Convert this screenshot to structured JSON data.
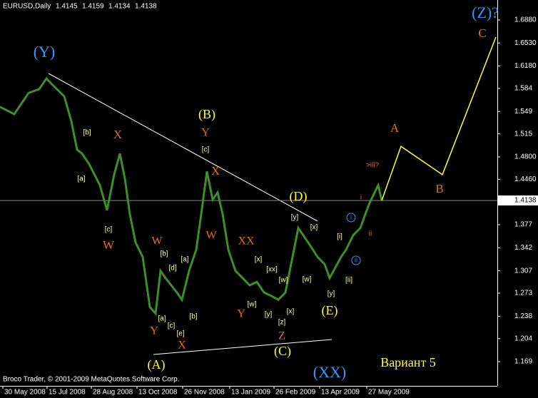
{
  "chart_data": {
    "type": "line",
    "symbol": "EURUSD,Daily",
    "ohlc": [
      1.4145,
      1.4159,
      1.4134,
      1.4138
    ],
    "x": [
      0,
      10,
      20,
      27.5,
      32.5,
      37.5,
      45,
      50,
      54,
      57.5,
      62.5,
      70,
      75,
      80,
      84,
      87.5,
      91,
      95,
      100,
      105,
      109,
      112.5,
      116,
      120,
      124,
      127.5,
      132.5,
      137.5,
      141,
      145,
      149,
      152.5,
      156,
      160,
      165,
      170,
      175,
      180,
      185,
      190,
      195,
      200,
      205,
      209,
      212.5,
      217.5,
      222.5,
      227.5,
      231,
      235,
      239,
      242.5,
      247.5,
      252.5,
      256,
      259,
      262.5,
      265,
      267.5
    ],
    "values": [
      1.556,
      1.545,
      1.577,
      1.583,
      1.599,
      1.588,
      1.572,
      1.534,
      1.491,
      1.485,
      1.469,
      1.437,
      1.399,
      1.453,
      1.485,
      1.447,
      1.393,
      1.35,
      1.328,
      1.252,
      1.242,
      1.307,
      1.296,
      1.285,
      1.274,
      1.263,
      1.307,
      1.339,
      1.393,
      1.458,
      1.415,
      1.426,
      1.393,
      1.339,
      1.307,
      1.296,
      1.285,
      1.29,
      1.274,
      1.269,
      1.263,
      1.274,
      1.328,
      1.372,
      1.361,
      1.345,
      1.328,
      1.317,
      1.296,
      1.312,
      1.328,
      1.339,
      1.361,
      1.372,
      1.393,
      1.41,
      1.426,
      1.437,
      1.414
    ],
    "color": "#3d8f2a",
    "projection": {
      "x": [
        267.5,
        281,
        310,
        347.5
      ],
      "values": [
        1.4138,
        1.496,
        1.453,
        1.662
      ],
      "color": "#ffff33"
    },
    "last_price": 1.4138,
    "xlim": [
      0,
      348.5
    ],
    "ylim": [
      1.1322,
      1.7183
    ],
    "xticks": [
      {
        "value": 2,
        "label": "30 May 2008"
      },
      {
        "value": 33,
        "label": "15 Jul 2008"
      },
      {
        "value": 64,
        "label": "28 Aug 2008"
      },
      {
        "value": 96,
        "label": "13 Oct 2008"
      },
      {
        "value": 128,
        "label": "26 Nov 2008"
      },
      {
        "value": 161,
        "label": "13 Jan 2009"
      },
      {
        "value": 192,
        "label": "26 Feb 2009"
      },
      {
        "value": 224,
        "label": "13 Apr 2009"
      },
      {
        "value": 257,
        "label": "27 May 2009"
      }
    ],
    "yticks": [
      {
        "value": 1.688,
        "label": "1.6880"
      },
      {
        "value": 1.653,
        "label": "1.6530"
      },
      {
        "value": 1.618,
        "label": "1.6180"
      },
      1.584,
      1.549,
      1.515,
      {
        "value": 1.48,
        "label": "1.4800"
      },
      {
        "value": 1.446,
        "label": "1.4460"
      },
      1.377,
      1.342,
      1.307,
      1.273,
      1.238,
      1.204,
      1.169
    ],
    "annotations": [
      "(Y)",
      "(Z)?",
      "C",
      "(B)",
      "Y",
      "[c]",
      "X",
      "X",
      "[b]",
      "[a]",
      "[c]",
      "W",
      "W",
      "[b]",
      "[a]",
      "[d]",
      "W",
      "XX",
      "[x]",
      "[xx]",
      "[w]",
      "[w]",
      "[w]",
      "[x]",
      "[y]",
      "[z]",
      "Y",
      "Z",
      "(C)",
      "(D)",
      "[y]",
      "[x]",
      "(E)",
      "[y]",
      "[ii]",
      "[i]",
      "i",
      "ii",
      "A",
      "B",
      ">iii?",
      "i",
      "ii",
      "Y",
      "X",
      "[a]",
      "[c]",
      "[e]",
      "[b]",
      "(A)",
      "(XX)",
      "Вариант 5"
    ],
    "footer": "Broco Trader, © 2001-2009 MetaQuotes Software Corp."
  }
}
